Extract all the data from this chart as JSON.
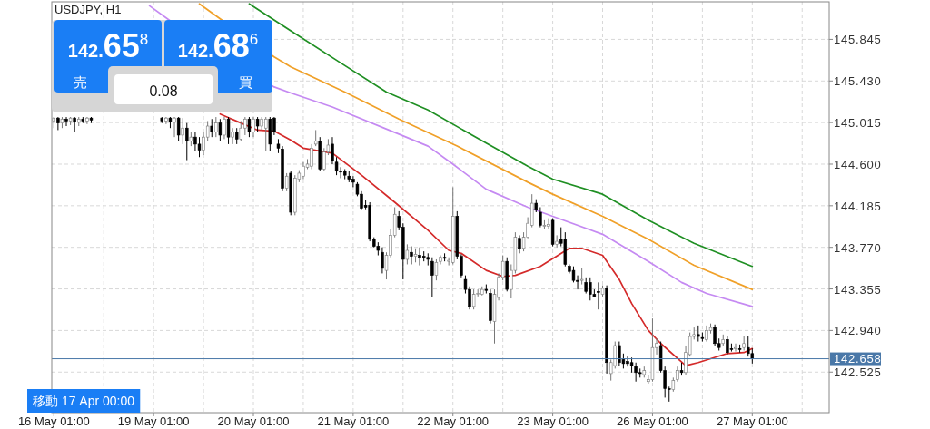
{
  "chart_data": {
    "type": "candlestick",
    "title": "USDJPY, H1",
    "categories": [
      "16 May 01:00",
      null,
      null,
      null,
      null,
      null,
      null,
      null,
      null,
      null,
      null,
      null,
      null,
      null,
      null,
      null,
      null,
      null,
      null,
      null,
      null,
      null,
      null,
      null,
      "19 May 01:00",
      null,
      null,
      null,
      null,
      null,
      null,
      null,
      null,
      null,
      null,
      null,
      null,
      null,
      null,
      null,
      null,
      null,
      null,
      null,
      null,
      null,
      null,
      null,
      "20 May 01:00",
      null,
      null,
      null,
      null,
      null,
      null,
      null,
      null,
      null,
      null,
      null,
      null,
      null,
      null,
      null,
      null,
      null,
      null,
      null,
      null,
      null,
      null,
      null,
      "21 May 01:00",
      null,
      null,
      null,
      null,
      null,
      null,
      null,
      null,
      null,
      null,
      null,
      null,
      null,
      null,
      null,
      null,
      null,
      null,
      null,
      null,
      null,
      null,
      null,
      "22 May 01:00",
      null,
      null,
      null,
      null,
      null,
      null,
      null,
      null,
      null,
      null,
      null,
      null,
      null,
      null,
      null,
      null,
      null,
      null,
      null,
      null,
      null,
      null,
      null,
      "23 May 01:00",
      null,
      null,
      null,
      null,
      null,
      null,
      null,
      null,
      null,
      null,
      null,
      null,
      null,
      null,
      null,
      null,
      null,
      null,
      null,
      null,
      null,
      null,
      null,
      "26 May 01:00",
      null,
      null,
      null,
      null,
      null,
      null,
      null,
      null,
      null,
      null,
      null,
      null,
      null,
      null,
      null,
      null,
      null,
      null,
      null,
      null,
      null,
      null,
      null,
      "27 May 01:00",
      null,
      null,
      null,
      null,
      null,
      null,
      null,
      null,
      null,
      null,
      null,
      null,
      null,
      null,
      null,
      null,
      null,
      null
    ],
    "ohlc": [
      [
        145.03,
        145.07,
        144.96,
        145.06
      ],
      [
        145.06,
        145.07,
        144.94,
        145.01
      ],
      [
        145.01,
        145.07,
        144.96,
        145.05
      ],
      [
        145.05,
        145.07,
        144.98,
        145.03
      ],
      [
        145.03,
        145.07,
        144.99,
        145.06
      ],
      [
        145.06,
        145.07,
        144.92,
        145.02
      ],
      [
        145.02,
        145.07,
        144.98,
        145.05
      ],
      [
        145.05,
        145.07,
        145.01,
        145.03
      ],
      [
        145.03,
        145.07,
        145.0,
        145.06
      ],
      [
        145.06,
        145.07,
        145.01,
        145.04
      ],
      null,
      null,
      null,
      null,
      null,
      null,
      null,
      null,
      null,
      null,
      null,
      null,
      null,
      null,
      null,
      null,
      [
        145.06,
        145.07,
        145.01,
        145.03
      ],
      [
        145.03,
        145.07,
        145.0,
        145.06
      ],
      [
        145.06,
        145.07,
        144.96,
        145.02
      ],
      [
        145.02,
        145.07,
        144.87,
        145.06
      ],
      [
        145.06,
        145.07,
        144.83,
        144.89
      ],
      [
        144.89,
        145.06,
        144.8,
        144.96
      ],
      [
        144.96,
        145.01,
        144.64,
        144.83
      ],
      [
        144.83,
        144.92,
        144.78,
        144.87
      ],
      [
        144.87,
        144.92,
        144.73,
        144.8
      ],
      [
        144.8,
        144.87,
        144.67,
        144.74
      ],
      [
        144.74,
        144.92,
        144.69,
        144.87
      ],
      [
        144.87,
        145.03,
        144.83,
        144.98
      ],
      [
        144.98,
        145.05,
        144.87,
        144.92
      ],
      [
        144.92,
        145.07,
        144.87,
        145.01
      ],
      [
        145.01,
        145.05,
        144.83,
        144.89
      ],
      [
        144.89,
        145.07,
        144.85,
        145.05
      ],
      [
        145.05,
        145.07,
        144.8,
        144.87
      ],
      [
        144.87,
        144.96,
        144.8,
        144.92
      ],
      [
        144.92,
        144.96,
        144.8,
        144.85
      ],
      [
        144.85,
        145.03,
        144.83,
        144.96
      ],
      [
        144.96,
        145.07,
        144.89,
        145.05
      ],
      [
        145.05,
        145.07,
        144.87,
        144.92
      ],
      [
        144.92,
        145.07,
        144.87,
        145.05
      ],
      [
        145.05,
        145.07,
        144.92,
        144.98
      ],
      [
        144.98,
        145.07,
        144.94,
        145.05
      ],
      [
        144.96,
        145.07,
        144.73,
        145.05
      ],
      [
        145.05,
        145.07,
        144.73,
        144.8
      ],
      [
        145.06,
        145.07,
        144.89,
        144.92
      ],
      [
        144.8,
        144.85,
        144.71,
        144.76
      ],
      [
        144.75,
        144.78,
        144.33,
        144.36
      ],
      [
        144.36,
        144.51,
        144.33,
        144.48
      ],
      [
        144.51,
        144.53,
        144.09,
        144.12
      ],
      [
        144.12,
        144.49,
        144.09,
        144.46
      ],
      [
        144.45,
        144.54,
        144.42,
        144.51
      ],
      [
        144.48,
        144.62,
        144.45,
        144.58
      ],
      [
        144.57,
        144.65,
        144.55,
        144.6
      ],
      [
        144.58,
        144.8,
        144.55,
        144.76
      ],
      [
        144.8,
        144.94,
        144.78,
        144.83
      ],
      [
        144.83,
        144.87,
        144.53,
        144.55
      ],
      [
        144.55,
        144.76,
        144.53,
        144.72
      ],
      [
        144.72,
        144.85,
        144.69,
        144.79
      ],
      [
        144.8,
        144.87,
        144.6,
        144.63
      ],
      [
        144.62,
        144.67,
        144.49,
        144.53
      ],
      [
        144.53,
        144.57,
        144.46,
        144.52
      ],
      [
        144.53,
        144.55,
        144.45,
        144.49
      ],
      [
        144.48,
        144.53,
        144.42,
        144.45
      ],
      [
        144.45,
        144.48,
        144.37,
        144.42
      ],
      [
        144.4,
        144.42,
        144.28,
        144.3
      ],
      [
        144.3,
        144.33,
        144.15,
        144.16
      ],
      [
        144.19,
        144.24,
        144.15,
        144.17
      ],
      [
        144.19,
        144.22,
        143.83,
        143.85
      ],
      [
        143.85,
        143.87,
        143.77,
        143.78
      ],
      [
        143.78,
        143.82,
        143.69,
        143.74
      ],
      [
        143.72,
        143.77,
        143.51,
        143.56
      ],
      [
        143.54,
        143.72,
        143.45,
        143.69
      ],
      [
        143.69,
        143.95,
        143.67,
        143.89
      ],
      [
        143.89,
        144.17,
        143.87,
        144.1
      ],
      [
        144.08,
        144.13,
        143.94,
        143.97
      ],
      [
        143.97,
        144.01,
        143.45,
        143.65
      ],
      [
        143.65,
        143.8,
        143.6,
        143.74
      ],
      [
        143.72,
        143.78,
        143.6,
        143.68
      ],
      [
        143.68,
        143.76,
        143.62,
        143.7
      ],
      [
        143.69,
        143.77,
        143.59,
        143.67
      ],
      [
        143.68,
        143.73,
        143.63,
        143.67
      ],
      [
        143.67,
        143.71,
        143.59,
        143.65
      ],
      [
        143.63,
        143.67,
        143.27,
        143.49
      ],
      [
        143.49,
        143.65,
        143.44,
        143.62
      ],
      [
        143.63,
        143.69,
        143.6,
        143.67
      ],
      [
        143.67,
        143.71,
        143.63,
        143.66
      ],
      [
        143.63,
        143.67,
        143.59,
        143.64
      ],
      [
        143.62,
        144.37,
        143.6,
        144.08
      ],
      [
        144.08,
        144.13,
        143.65,
        143.68
      ],
      [
        143.68,
        143.7,
        143.47,
        143.49
      ],
      [
        143.45,
        143.49,
        143.31,
        143.35
      ],
      [
        143.35,
        143.38,
        143.15,
        143.18
      ],
      [
        143.18,
        143.35,
        143.15,
        143.3
      ],
      [
        143.3,
        143.35,
        143.28,
        143.31
      ],
      [
        143.3,
        143.38,
        143.29,
        143.35
      ],
      [
        143.35,
        143.4,
        143.31,
        143.34
      ],
      [
        143.31,
        143.35,
        143.01,
        143.04
      ],
      [
        143.03,
        143.35,
        142.81,
        143.3
      ],
      [
        143.27,
        143.51,
        143.24,
        143.47
      ],
      [
        143.47,
        143.69,
        143.44,
        143.63
      ],
      [
        143.63,
        143.67,
        143.33,
        143.35
      ],
      [
        143.35,
        143.6,
        143.26,
        143.54
      ],
      [
        143.54,
        143.92,
        143.51,
        143.87
      ],
      [
        143.86,
        143.89,
        143.71,
        143.76
      ],
      [
        143.76,
        143.92,
        143.73,
        143.87
      ],
      [
        143.87,
        144.07,
        143.86,
        144.01
      ],
      [
        143.99,
        144.3,
        143.97,
        144.21
      ],
      [
        144.21,
        144.25,
        144.12,
        144.15
      ],
      [
        144.12,
        144.17,
        143.97,
        143.99
      ],
      [
        143.98,
        144.04,
        143.95,
        143.99
      ],
      [
        143.98,
        144.06,
        143.95,
        144.0
      ],
      [
        144.04,
        144.06,
        143.78,
        143.8
      ],
      [
        143.8,
        143.89,
        143.77,
        143.83
      ],
      [
        143.85,
        143.97,
        143.78,
        143.81
      ],
      [
        143.85,
        143.92,
        143.58,
        143.6
      ],
      [
        143.58,
        143.6,
        143.51,
        143.53
      ],
      [
        143.54,
        143.58,
        143.42,
        143.44
      ],
      [
        143.44,
        143.49,
        143.35,
        143.43
      ],
      [
        143.44,
        143.56,
        143.4,
        143.45
      ],
      [
        143.42,
        143.47,
        143.31,
        143.33
      ],
      [
        143.42,
        143.47,
        143.24,
        143.3
      ],
      [
        143.3,
        143.35,
        143.27,
        143.28
      ],
      [
        143.33,
        143.42,
        143.15,
        143.32
      ],
      [
        143.3,
        143.39,
        143.28,
        143.36
      ],
      [
        143.36,
        143.39,
        142.51,
        142.62
      ],
      [
        142.51,
        142.65,
        142.44,
        142.62
      ],
      [
        142.59,
        142.83,
        142.56,
        142.79
      ],
      [
        142.79,
        142.83,
        142.59,
        142.62
      ],
      [
        142.65,
        142.71,
        142.56,
        142.61
      ],
      [
        142.63,
        142.68,
        142.58,
        142.61
      ],
      [
        142.62,
        142.67,
        142.52,
        142.59
      ],
      [
        142.58,
        142.62,
        142.43,
        142.52
      ],
      [
        142.52,
        142.56,
        142.47,
        142.51
      ],
      [
        142.5,
        142.58,
        142.47,
        142.54
      ],
      [
        142.43,
        142.5,
        142.41,
        142.45
      ],
      [
        142.45,
        143.06,
        142.43,
        142.77
      ],
      [
        142.77,
        142.86,
        142.7,
        142.81
      ],
      [
        142.79,
        142.83,
        142.52,
        142.54
      ],
      [
        142.54,
        142.58,
        142.27,
        142.36
      ],
      [
        142.36,
        142.38,
        142.23,
        142.35
      ],
      [
        142.35,
        142.47,
        142.33,
        142.44
      ],
      [
        142.45,
        142.58,
        142.43,
        142.54
      ],
      [
        142.54,
        142.62,
        142.49,
        142.52
      ],
      [
        142.52,
        142.79,
        142.5,
        142.72
      ],
      [
        142.7,
        142.92,
        142.68,
        142.88
      ],
      [
        142.88,
        142.97,
        142.85,
        142.9
      ],
      [
        142.9,
        142.99,
        142.83,
        142.88
      ],
      [
        142.87,
        142.92,
        142.83,
        142.86
      ],
      [
        142.85,
        142.99,
        142.83,
        142.94
      ],
      [
        142.94,
        143.01,
        142.91,
        142.97
      ],
      [
        142.97,
        143.0,
        142.79,
        142.81
      ],
      [
        142.81,
        142.86,
        142.74,
        142.77
      ],
      [
        142.81,
        142.9,
        142.79,
        142.85
      ],
      [
        142.85,
        142.88,
        142.7,
        142.72
      ],
      [
        142.76,
        142.81,
        142.73,
        142.75
      ],
      [
        142.76,
        142.81,
        142.73,
        142.77
      ],
      [
        142.76,
        142.8,
        142.72,
        142.75
      ],
      [
        142.77,
        142.88,
        142.74,
        142.81
      ],
      [
        142.77,
        142.88,
        142.68,
        142.71
      ],
      [
        142.71,
        142.76,
        142.61,
        142.66
      ],
      null,
      null,
      null,
      null,
      null,
      null,
      null,
      null,
      null,
      null,
      null,
      null,
      null,
      null,
      null,
      null,
      null,
      null
    ],
    "series": [
      {
        "type": "line",
        "color": "#1f8f23",
        "values": [
          null,
          null,
          null,
          null,
          null,
          null,
          null,
          null,
          null,
          null,
          null,
          null,
          null,
          null,
          null,
          null,
          null,
          null,
          null,
          null,
          null,
          null,
          null,
          null,
          null,
          null,
          null,
          null,
          null,
          null,
          null,
          null,
          null,
          null,
          null,
          null,
          null,
          null,
          null,
          null,
          null,
          null,
          null,
          null,
          null,
          null,
          null,
          146.2,
          null,
          null,
          null,
          null,
          null,
          null,
          null,
          null,
          null,
          145.93,
          null,
          null,
          null,
          null,
          null,
          null,
          null,
          null,
          null,
          null,
          null,
          145.61,
          null,
          null,
          null,
          null,
          null,
          null,
          null,
          null,
          null,
          null,
          145.32,
          null,
          null,
          null,
          null,
          null,
          null,
          null,
          null,
          null,
          145.14,
          null,
          null,
          null,
          null,
          null,
          null,
          null,
          null,
          null,
          null,
          null,
          null,
          null,
          144.81,
          null,
          null,
          null,
          null,
          null,
          null,
          null,
          null,
          null,
          144.58,
          null,
          null,
          null,
          null,
          null,
          144.45,
          null,
          null,
          null,
          null,
          null,
          null,
          null,
          null,
          null,
          null,
          null,
          144.3,
          null,
          null,
          null,
          null,
          null,
          null,
          null,
          null,
          null,
          null,
          144.04,
          null,
          null,
          null,
          null,
          null,
          null,
          null,
          null,
          null,
          null,
          143.81,
          null,
          null,
          null,
          null,
          null,
          null,
          null,
          null,
          null,
          null,
          null,
          null,
          null,
          143.58,
          null,
          null,
          null,
          null,
          null,
          null,
          null,
          null,
          null,
          null,
          null,
          null,
          null,
          null,
          null,
          null,
          null,
          null
        ]
      },
      {
        "type": "line",
        "color": "#f0a028",
        "values": [
          null,
          null,
          null,
          null,
          null,
          null,
          null,
          null,
          null,
          null,
          null,
          null,
          null,
          null,
          null,
          null,
          null,
          null,
          null,
          null,
          null,
          null,
          null,
          null,
          null,
          null,
          null,
          null,
          null,
          null,
          null,
          null,
          null,
          null,
          null,
          146.2,
          null,
          null,
          null,
          null,
          146.05,
          null,
          null,
          null,
          null,
          null,
          null,
          null,
          null,
          null,
          null,
          null,
          null,
          145.67,
          null,
          null,
          null,
          145.57,
          null,
          null,
          null,
          null,
          null,
          null,
          null,
          null,
          null,
          null,
          null,
          null,
          145.32,
          null,
          null,
          null,
          null,
          null,
          null,
          null,
          null,
          null,
          null,
          null,
          null,
          145.05,
          null,
          null,
          null,
          null,
          null,
          null,
          null,
          null,
          null,
          null,
          null,
          null,
          null,
          144.78,
          null,
          null,
          null,
          null,
          null,
          null,
          null,
          null,
          null,
          null,
          null,
          null,
          null,
          null,
          null,
          null,
          144.42,
          null,
          null,
          null,
          null,
          null,
          144.3,
          null,
          null,
          null,
          null,
          null,
          null,
          null,
          null,
          null,
          null,
          null,
          144.08,
          null,
          null,
          null,
          null,
          null,
          null,
          null,
          null,
          null,
          null,
          143.85,
          null,
          null,
          null,
          null,
          null,
          null,
          null,
          null,
          null,
          null,
          143.59,
          null,
          null,
          null,
          null,
          null,
          null,
          null,
          null,
          null,
          null,
          null,
          null,
          null,
          143.35,
          null,
          null,
          null,
          null,
          null,
          null,
          null,
          null,
          null,
          null,
          null,
          null,
          null,
          null,
          null,
          null,
          null,
          null
        ]
      },
      {
        "type": "line",
        "color": "#c58af2",
        "values": [
          null,
          null,
          null,
          null,
          null,
          null,
          null,
          null,
          null,
          null,
          null,
          null,
          null,
          null,
          null,
          null,
          null,
          null,
          null,
          null,
          null,
          null,
          null,
          146.18,
          null,
          null,
          null,
          null,
          146.03,
          null,
          null,
          null,
          null,
          null,
          null,
          null,
          null,
          null,
          null,
          null,
          null,
          null,
          null,
          null,
          null,
          null,
          null,
          null,
          null,
          null,
          null,
          null,
          null,
          145.37,
          null,
          null,
          null,
          145.31,
          null,
          null,
          null,
          null,
          null,
          null,
          null,
          null,
          null,
          145.17,
          null,
          null,
          null,
          null,
          null,
          null,
          null,
          null,
          null,
          null,
          null,
          null,
          null,
          null,
          null,
          144.9,
          null,
          null,
          null,
          null,
          null,
          null,
          144.78,
          null,
          null,
          null,
          null,
          null,
          144.6,
          null,
          null,
          null,
          null,
          null,
          null,
          null,
          144.35,
          null,
          null,
          null,
          null,
          null,
          null,
          null,
          null,
          null,
          144.17,
          null,
          null,
          null,
          null,
          null,
          144.08,
          null,
          null,
          null,
          null,
          null,
          null,
          null,
          null,
          null,
          null,
          null,
          143.9,
          null,
          null,
          null,
          null,
          null,
          null,
          null,
          null,
          null,
          null,
          143.63,
          null,
          null,
          null,
          null,
          null,
          null,
          null,
          143.42,
          null,
          null,
          null,
          null,
          null,
          143.31,
          null,
          null,
          null,
          null,
          null,
          null,
          null,
          null,
          null,
          null,
          143.18,
          null,
          null,
          null,
          null,
          null,
          null,
          null,
          null,
          null,
          null,
          null,
          null,
          null,
          null,
          null,
          null,
          null,
          null
        ]
      },
      {
        "type": "line",
        "color": "#d42a2a",
        "values": [
          null,
          null,
          null,
          null,
          null,
          null,
          null,
          null,
          null,
          null,
          null,
          null,
          null,
          null,
          null,
          null,
          null,
          null,
          null,
          null,
          null,
          null,
          null,
          null,
          null,
          null,
          null,
          null,
          null,
          null,
          null,
          null,
          null,
          null,
          null,
          null,
          null,
          null,
          null,
          null,
          145.1,
          null,
          null,
          null,
          null,
          null,
          null,
          null,
          null,
          144.94,
          null,
          null,
          null,
          144.93,
          null,
          null,
          null,
          144.84,
          null,
          null,
          144.76,
          null,
          null,
          null,
          null,
          null,
          null,
          144.71,
          null,
          null,
          null,
          null,
          null,
          null,
          144.49,
          null,
          null,
          null,
          null,
          null,
          null,
          null,
          144.22,
          null,
          null,
          null,
          null,
          null,
          null,
          null,
          143.94,
          null,
          null,
          null,
          null,
          143.74,
          null,
          null,
          143.71,
          null,
          null,
          null,
          null,
          null,
          143.54,
          null,
          null,
          null,
          143.48,
          null,
          null,
          143.49,
          null,
          null,
          null,
          null,
          null,
          143.58,
          null,
          null,
          null,
          null,
          null,
          null,
          143.76,
          null,
          null,
          143.76,
          null,
          null,
          null,
          null,
          143.69,
          null,
          null,
          null,
          143.45,
          null,
          null,
          143.21,
          null,
          null,
          null,
          142.94,
          null,
          null,
          142.81,
          null,
          null,
          null,
          null,
          null,
          142.59,
          null,
          null,
          142.62,
          null,
          null,
          null,
          null,
          null,
          null,
          142.71,
          null,
          null,
          null,
          142.72,
          null,
          142.76,
          null,
          null,
          null,
          null,
          null,
          null,
          null,
          null,
          null,
          null,
          null,
          null,
          null,
          null,
          null,
          null,
          null,
          null
        ]
      }
    ],
    "ylim": [
      142.12,
      146.22
    ],
    "yticks": [
      {
        "value": 142.525,
        "label": "142.525"
      },
      {
        "value": 142.94,
        "label": "142.940"
      },
      {
        "value": 143.355,
        "label": "143.355"
      },
      {
        "value": 143.77,
        "label": "143.770"
      },
      {
        "value": 144.185,
        "label": "144.185"
      },
      {
        "value": 144.6,
        "label": "144.600"
      },
      {
        "value": 145.015,
        "label": "145.015"
      },
      {
        "value": 145.43,
        "label": "145.430"
      },
      {
        "value": 145.845,
        "label": "145.845"
      }
    ],
    "grid": true,
    "ref_lines": [
      {
        "axis": "y",
        "value": 142.658,
        "label": "142.658",
        "color": "#4a78a8"
      }
    ],
    "annotations": [
      "142.65$^{8}$",
      "142.68$^{6}$",
      "売",
      "買",
      "0.08",
      "移動 17 Apr 00:00"
    ]
  }
}
